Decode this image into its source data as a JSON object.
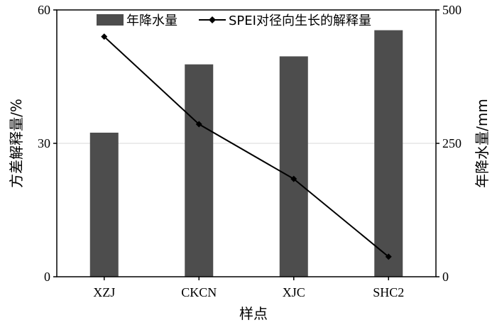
{
  "chart_data": {
    "type": "bar",
    "categories": [
      "XZJ",
      "CKCN",
      "XJC",
      "SHC2"
    ],
    "series": [
      {
        "name": "年降水量",
        "type": "bar",
        "axis": "right",
        "values": [
          270,
          398,
          413,
          462
        ]
      },
      {
        "name": "SPEI对径向生长的解释量",
        "type": "line",
        "axis": "left",
        "values": [
          54,
          34.3,
          22,
          4.5
        ]
      }
    ],
    "xlabel": "样点",
    "ylabel_left": "方差解释量/%",
    "ylabel_right": "年降水量/mm",
    "ylim_left": [
      0,
      60
    ],
    "ylim_right": [
      0,
      500
    ],
    "yticks_left": [
      "0",
      "30",
      "60"
    ],
    "yticks_right": [
      "0",
      "250",
      "500"
    ],
    "grid": "horizontal at middle tick",
    "legend_position": "top",
    "colors": {
      "bar": "#4d4d4d",
      "line": "#000000",
      "grid": "#d9d9d9"
    }
  }
}
